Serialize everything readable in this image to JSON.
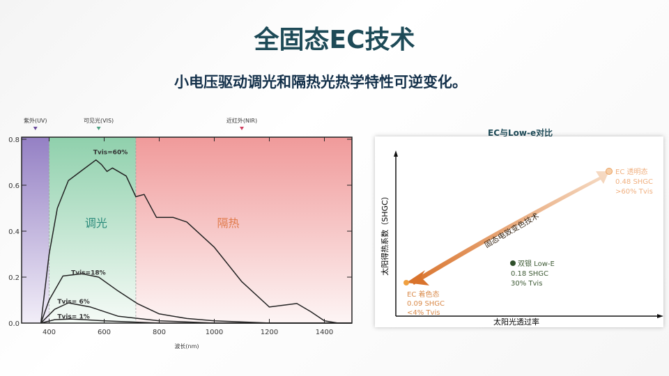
{
  "title": "全固态EC技术",
  "subtitle": "小电压驱动调光和隔热光热学特性可逆变化。",
  "chart_data": [
    {
      "type": "line",
      "xlabel": "波长(nm)",
      "ylabel": "",
      "xlim": [
        300,
        1500
      ],
      "ylim": [
        0,
        0.8
      ],
      "xticks": [
        "400",
        "600",
        "800",
        "1000",
        "1200",
        "1400"
      ],
      "yticks": [
        "0.0",
        "0.2",
        "0.4",
        "0.6",
        "0.8"
      ],
      "regions": [
        {
          "label": "紫外(UV)",
          "range": [
            300,
            400
          ],
          "color": "#8a74c0"
        },
        {
          "label": "可见光(VIS)",
          "range": [
            400,
            715
          ],
          "color": "#7fcaa0",
          "annotation": "调光"
        },
        {
          "label": "近红外(NIR)",
          "range": [
            715,
            1500
          ],
          "color": "#f08a8a",
          "annotation": "隔热"
        }
      ],
      "series": [
        {
          "name": "Tvis=60%",
          "x": [
            370,
            400,
            430,
            470,
            520,
            570,
            590,
            610,
            630,
            680,
            715,
            745,
            790,
            850,
            900,
            1000,
            1100,
            1200,
            1300,
            1350,
            1400,
            1450,
            1500
          ],
          "y": [
            0,
            0.3,
            0.5,
            0.62,
            0.665,
            0.71,
            0.69,
            0.66,
            0.675,
            0.64,
            0.55,
            0.56,
            0.46,
            0.46,
            0.44,
            0.33,
            0.18,
            0.07,
            0.085,
            0.05,
            0.01,
            0,
            0
          ]
        },
        {
          "name": "Tvis=18%",
          "x": [
            370,
            400,
            450,
            520,
            580,
            650,
            720,
            800,
            900,
            1000,
            1200,
            1500
          ],
          "y": [
            0,
            0.1,
            0.205,
            0.215,
            0.2,
            0.14,
            0.085,
            0.04,
            0.02,
            0.01,
            0,
            0
          ]
        },
        {
          "name": "Tvis= 6%",
          "x": [
            370,
            420,
            470,
            550,
            650,
            800,
            1000,
            1500
          ],
          "y": [
            0,
            0.06,
            0.088,
            0.07,
            0.03,
            0.01,
            0,
            0
          ]
        },
        {
          "name": "Tvis= 1%",
          "x": [
            370,
            420,
            480,
            600,
            800,
            1500
          ],
          "y": [
            0,
            0.015,
            0.018,
            0.01,
            0,
            0
          ]
        }
      ],
      "region_labels": {
        "dimming": "调光",
        "insulation": "隔热"
      }
    },
    {
      "type": "scatter",
      "title": "EC与Low-e对比",
      "xlabel": "太阳光透过率",
      "ylabel": "太阳得热系数（SHGC）",
      "arrow_label": "固态电致变色技术",
      "points": [
        {
          "name": "EC 透明态",
          "lines": [
            "EC 透明态",
            "0.48 SHGC",
            ">60% Tvis"
          ],
          "color": "#f2b27a"
        },
        {
          "name": "双银 Low-E",
          "lines": [
            "双银 Low-E",
            "0.18 SHGC",
            "30% Tvis"
          ],
          "color": "#2f4f2a"
        },
        {
          "name": "EC 着色态",
          "lines": [
            "EC 着色态",
            "0.09 SHGC",
            "<4% Tvis"
          ],
          "color": "#e88a2a"
        }
      ]
    }
  ]
}
